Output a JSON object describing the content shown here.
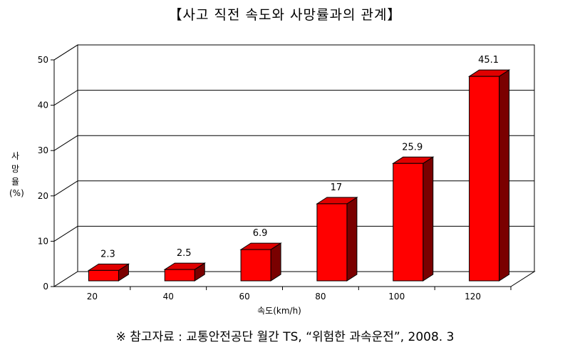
{
  "chart_data": {
    "type": "bar",
    "title": "【사고 직전 속도와 사망률과의 관계】",
    "xlabel": "속도(km/h)",
    "ylabel": [
      "사",
      "망",
      "율",
      "(%)"
    ],
    "categories": [
      "20",
      "40",
      "60",
      "80",
      "100",
      "120"
    ],
    "values": [
      2.3,
      2.5,
      6.9,
      17,
      25.9,
      45.1
    ],
    "value_labels": [
      "2.3",
      "2.5",
      "6.9",
      "17",
      "25.9",
      "45.1"
    ],
    "ylim": [
      0,
      50
    ],
    "yticks": [
      "0",
      "10",
      "20",
      "30",
      "40",
      "50"
    ],
    "grid": true,
    "bar_color": "#ff0000",
    "bar_side_color": "#7a0000",
    "bar_top_color": "#e00000"
  },
  "source": "※ 참고자료 : 교통안전공단 월간 TS, “위험한 과속운전”, 2008. 3"
}
